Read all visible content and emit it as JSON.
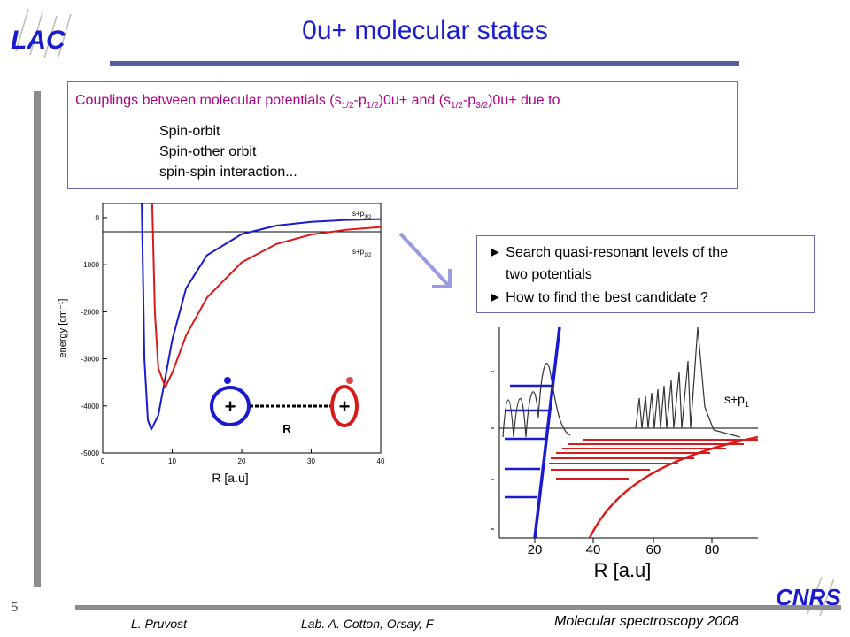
{
  "slide": {
    "title": "0u+ molecular states",
    "page_number": "5"
  },
  "logos": {
    "lac": "LAC",
    "cnrs": "CNRS"
  },
  "couplings": {
    "intro_pre": "Couplings between molecular potentials (s",
    "sub1": "1/2",
    "mid1": "-p",
    "sub2": "1/2",
    "mid2": ")0u+ and (s",
    "sub3": "1/2",
    "mid3": "-p",
    "sub4": "3/2",
    "intro_post": ")0u+ due to",
    "items": [
      "Spin-orbit",
      "Spin-other orbit",
      "spin-spin interaction..."
    ]
  },
  "search_box": {
    "line1": "► Search quasi-resonant levels of the",
    "line2": "two potentials",
    "line3": "► How to find the best candidate ?"
  },
  "potential_plot": {
    "ylabel": "energy [cm⁻¹]",
    "xlabel": "R [a.u]",
    "yticks": [
      "0",
      "-1000",
      "-2000",
      "-3000",
      "-4000",
      "-5000"
    ],
    "xticks": [
      "0",
      "10",
      "20",
      "30",
      "40"
    ],
    "curve_label_upper": "s+p3/2",
    "curve_label_lower": "s+p1/2",
    "atom_charge": "+",
    "bond_label": "R"
  },
  "levels_plot": {
    "xlabel": "R [a.u]",
    "xticks": [
      "20",
      "40",
      "60",
      "80"
    ],
    "label": "s+p1"
  },
  "footer": {
    "author": "L. Pruvost",
    "lab": "Lab. A. Cotton, Orsay, F",
    "event": "Molecular spectroscopy  2008"
  },
  "chart_data": [
    {
      "type": "line",
      "xlabel": "R [a.u]",
      "ylabel": "energy [cm-1]",
      "xlim": [
        0,
        40
      ],
      "ylim": [
        -5000,
        300
      ],
      "series": [
        {
          "name": "s+p3/2",
          "color": "#1a1ad0",
          "x": [
            6,
            6.5,
            7,
            8,
            9,
            10,
            12,
            15,
            20,
            25,
            30,
            35,
            40
          ],
          "y": [
            -3000,
            -4300,
            -4500,
            -4200,
            -3400,
            -2600,
            -1500,
            -800,
            -350,
            -170,
            -90,
            -50,
            -30
          ]
        },
        {
          "name": "s+p1/2",
          "color": "#d81a1a",
          "x": [
            7.5,
            8,
            9,
            10,
            12,
            15,
            20,
            25,
            30,
            35,
            40
          ],
          "y": [
            -2000,
            -3200,
            -3600,
            -3300,
            -2500,
            -1700,
            -950,
            -560,
            -360,
            -260,
            -200
          ]
        }
      ]
    }
  ]
}
